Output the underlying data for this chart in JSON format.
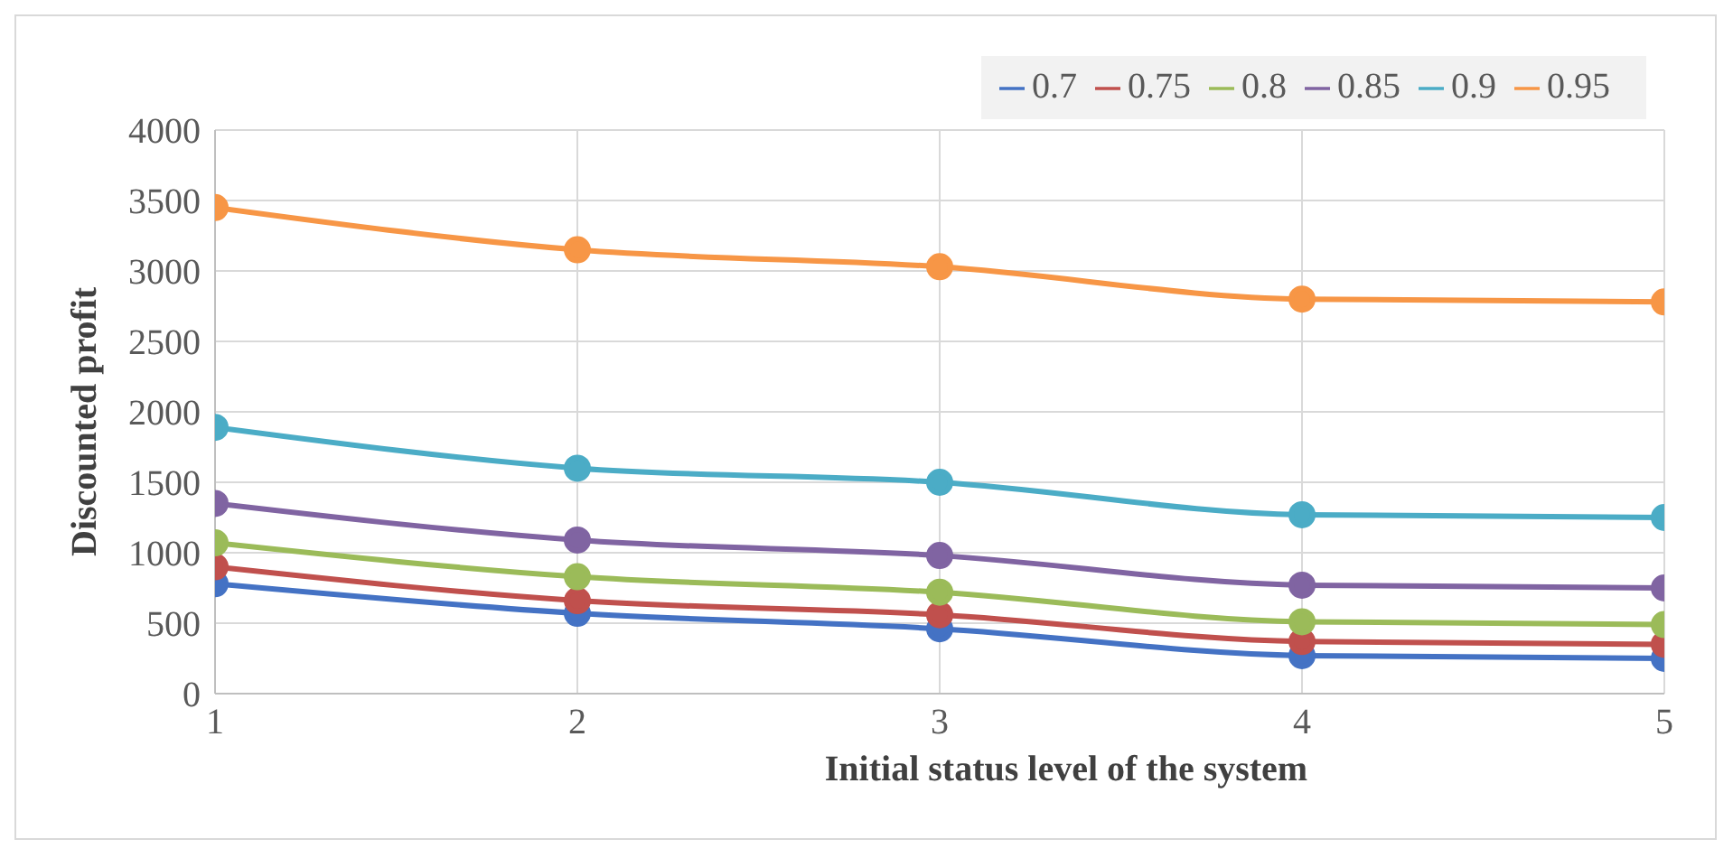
{
  "chart_data": {
    "type": "line",
    "xlabel": "Initial status level of the system",
    "ylabel": "Discounted  profit",
    "x": [
      1,
      2,
      3,
      4,
      5
    ],
    "xlim": [
      1,
      5
    ],
    "xticks": [
      1,
      2,
      3,
      4,
      5
    ],
    "ylim": [
      0,
      4000
    ],
    "yticks": [
      0,
      500,
      1000,
      1500,
      2000,
      2500,
      3000,
      3500,
      4000
    ],
    "grid": true,
    "legend": "top right",
    "marker": "circle",
    "line_style": "solid",
    "series": [
      {
        "name": "0.7",
        "color": "#4472c4",
        "values": [
          780,
          570,
          460,
          270,
          250
        ]
      },
      {
        "name": "0.75",
        "color": "#c0504d",
        "values": [
          900,
          660,
          560,
          370,
          350
        ]
      },
      {
        "name": "0.8",
        "color": "#9bbb59",
        "values": [
          1070,
          830,
          720,
          510,
          490
        ]
      },
      {
        "name": "0.85",
        "color": "#8064a2",
        "values": [
          1350,
          1090,
          980,
          770,
          750
        ]
      },
      {
        "name": "0.9",
        "color": "#4bacc6",
        "values": [
          1890,
          1600,
          1500,
          1270,
          1250
        ]
      },
      {
        "name": "0.95",
        "color": "#f79646",
        "values": [
          3450,
          3150,
          3030,
          2800,
          2780
        ]
      }
    ]
  }
}
